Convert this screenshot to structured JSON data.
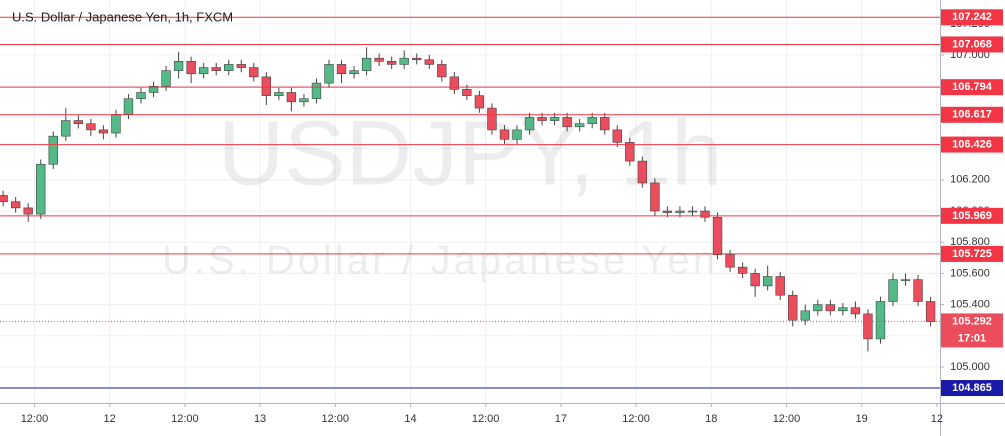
{
  "chart_data": {
    "type": "candlestick",
    "title": "U.S. Dollar / Japanese Yen, 1h, FXCM",
    "watermark_symbol": "USDJPY, 1h",
    "watermark_name": "U.S. Dollar / Japanese Yen",
    "up_color": "#53b987",
    "down_color": "#eb4d5c",
    "x": [
      0,
      2,
      4,
      6,
      8,
      10,
      12,
      14,
      16,
      18,
      20,
      22,
      24,
      26,
      28,
      30,
      32,
      34,
      36,
      38,
      40,
      42,
      44,
      46,
      48,
      50,
      52,
      54,
      56,
      58,
      60,
      62,
      64,
      66,
      68,
      70,
      72,
      74,
      76,
      78,
      80,
      82,
      84,
      86,
      88,
      90,
      92,
      94,
      96,
      98,
      100,
      102,
      104,
      106,
      108,
      110,
      112,
      114,
      116,
      118,
      120,
      122,
      124,
      126,
      128,
      130,
      132,
      134,
      136,
      138,
      140,
      142,
      144,
      146,
      148
    ],
    "open": [
      106.1,
      106.06,
      106.02,
      105.98,
      106.3,
      106.48,
      106.58,
      106.56,
      106.52,
      106.5,
      106.62,
      106.72,
      106.76,
      106.8,
      106.9,
      106.96,
      106.88,
      106.92,
      106.9,
      106.94,
      106.92,
      106.86,
      106.74,
      106.76,
      106.7,
      106.72,
      106.82,
      106.94,
      106.88,
      106.9,
      106.98,
      106.96,
      106.94,
      106.98,
      106.97,
      106.94,
      106.86,
      106.78,
      106.74,
      106.66,
      106.52,
      106.46,
      106.52,
      106.6,
      106.58,
      106.6,
      106.54,
      106.56,
      106.6,
      106.52,
      106.44,
      106.32,
      106.18,
      106.0,
      105.99,
      106.0,
      106.0,
      105.96,
      105.72,
      105.64,
      105.6,
      105.52,
      105.58,
      105.46,
      105.3,
      105.36,
      105.4,
      105.36,
      105.38,
      105.34,
      105.18,
      105.42,
      105.56,
      105.56,
      105.42
    ],
    "high": [
      106.13,
      106.09,
      106.05,
      106.33,
      106.51,
      106.66,
      106.62,
      106.59,
      106.55,
      106.65,
      106.75,
      106.79,
      106.83,
      106.93,
      107.02,
      106.99,
      106.95,
      106.95,
      106.97,
      106.97,
      106.95,
      106.89,
      106.79,
      106.79,
      106.75,
      106.85,
      106.97,
      106.97,
      106.93,
      107.05,
      107.01,
      106.99,
      107.03,
      107.01,
      107.0,
      106.97,
      106.89,
      106.81,
      106.77,
      106.69,
      106.55,
      106.55,
      106.63,
      106.63,
      106.63,
      106.63,
      106.59,
      106.63,
      106.63,
      106.55,
      106.47,
      106.35,
      106.21,
      106.03,
      106.03,
      106.03,
      106.03,
      105.99,
      105.75,
      105.67,
      105.63,
      105.65,
      105.61,
      105.49,
      105.4,
      105.43,
      105.43,
      105.41,
      105.42,
      105.37,
      105.45,
      105.6,
      105.6,
      105.59,
      105.45
    ],
    "low": [
      106.03,
      105.99,
      105.93,
      105.95,
      106.27,
      106.45,
      106.53,
      106.48,
      106.46,
      106.47,
      106.59,
      106.69,
      106.73,
      106.77,
      106.85,
      106.82,
      106.85,
      106.87,
      106.87,
      106.89,
      106.83,
      106.68,
      106.71,
      106.64,
      106.67,
      106.69,
      106.79,
      106.82,
      106.85,
      106.87,
      106.93,
      106.91,
      106.91,
      106.94,
      106.91,
      106.83,
      106.75,
      106.71,
      106.63,
      106.49,
      106.43,
      106.43,
      106.49,
      106.55,
      106.55,
      106.51,
      106.51,
      106.53,
      106.49,
      106.41,
      106.29,
      106.15,
      105.97,
      105.96,
      105.96,
      105.97,
      105.93,
      105.69,
      105.61,
      105.57,
      105.45,
      105.49,
      105.43,
      105.26,
      105.27,
      105.33,
      105.33,
      105.33,
      105.31,
      105.1,
      105.15,
      105.39,
      105.52,
      105.39,
      105.26
    ],
    "close": [
      106.06,
      106.02,
      105.98,
      106.3,
      106.48,
      106.58,
      106.56,
      106.52,
      106.5,
      106.62,
      106.72,
      106.76,
      106.8,
      106.9,
      106.96,
      106.88,
      106.92,
      106.9,
      106.94,
      106.92,
      106.86,
      106.74,
      106.76,
      106.7,
      106.72,
      106.82,
      106.94,
      106.88,
      106.9,
      106.98,
      106.96,
      106.94,
      106.98,
      106.97,
      106.94,
      106.86,
      106.78,
      106.74,
      106.66,
      106.52,
      106.46,
      106.52,
      106.6,
      106.58,
      106.6,
      106.54,
      106.56,
      106.6,
      106.52,
      106.44,
      106.32,
      106.18,
      106.0,
      105.99,
      106.0,
      106.0,
      105.96,
      105.72,
      105.64,
      105.6,
      105.52,
      105.58,
      105.46,
      105.3,
      105.36,
      105.4,
      105.36,
      105.38,
      105.34,
      105.18,
      105.42,
      105.56,
      105.56,
      105.42,
      105.29
    ],
    "xlim": [
      -0.5,
      149.5
    ],
    "xticks": [
      {
        "value": 5,
        "label": "12:00"
      },
      {
        "value": 17,
        "label": "12"
      },
      {
        "value": 29,
        "label": "12:00"
      },
      {
        "value": 41,
        "label": "13"
      },
      {
        "value": 53,
        "label": "12:00"
      },
      {
        "value": 65,
        "label": "14"
      },
      {
        "value": 77,
        "label": "12:00"
      },
      {
        "value": 89,
        "label": "17"
      },
      {
        "value": 101,
        "label": "12:00"
      },
      {
        "value": 113,
        "label": "18"
      },
      {
        "value": 125,
        "label": "12:00"
      },
      {
        "value": 137,
        "label": "19"
      },
      {
        "value": 149,
        "label": "12"
      }
    ],
    "ylim": [
      104.769,
      107.353
    ],
    "yticks": [
      {
        "value": 105,
        "label": "105.000"
      },
      {
        "value": 105.2,
        "label": "105.200"
      },
      {
        "value": 105.4,
        "label": "105.400"
      },
      {
        "value": 105.6,
        "label": "105.600"
      },
      {
        "value": 105.8,
        "label": "105.800"
      },
      {
        "value": 106,
        "label": "106.000"
      },
      {
        "value": 106.2,
        "label": "106.200"
      },
      {
        "value": 106.4,
        "label": "106.400"
      },
      {
        "value": 106.6,
        "label": "106.600"
      },
      {
        "value": 106.8,
        "label": "106.800"
      },
      {
        "value": 107,
        "label": "107.000"
      },
      {
        "value": 107.2,
        "label": "107.200"
      }
    ],
    "grid": true,
    "levels": [
      {
        "value": 107.242,
        "color": "#f23645"
      },
      {
        "value": 107.068,
        "color": "#f23645"
      },
      {
        "value": 106.794,
        "color": "#f23645"
      },
      {
        "value": 106.617,
        "color": "#f23645"
      },
      {
        "value": 106.426,
        "color": "#f23645"
      },
      {
        "value": 105.969,
        "color": "#f23645"
      },
      {
        "value": 105.725,
        "color": "#f23645"
      },
      {
        "value": 104.865,
        "color": "#1a1aa8"
      }
    ],
    "current_price": 105.292,
    "current_color": "#eb4d5c",
    "countdown": "17:01"
  }
}
